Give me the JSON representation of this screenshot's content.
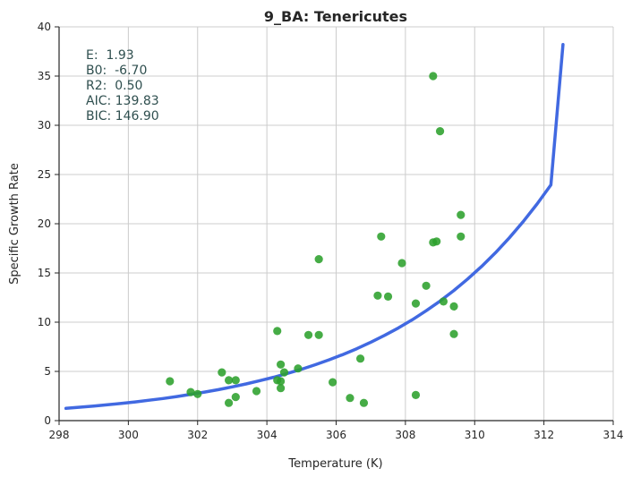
{
  "chart_data": {
    "type": "scatter",
    "title": "9_BA: Tenericutes",
    "xlabel": "Temperature (K)",
    "ylabel": "Specific Growth Rate",
    "xlim": [
      298,
      314
    ],
    "ylim": [
      0,
      40
    ],
    "xticks": [
      298,
      300,
      302,
      304,
      306,
      308,
      310,
      312,
      314
    ],
    "yticks": [
      0,
      5,
      10,
      15,
      20,
      25,
      30,
      35,
      40
    ],
    "grid": true,
    "colors": {
      "points": "#2ca02c",
      "curve": "#4169e1",
      "stats_text": "#2f4f4f",
      "grid": "#cccccc"
    },
    "stats": [
      "E:  1.93",
      "B0:  -6.70",
      "R2:  0.50",
      "AIC: 139.83",
      "BIC: 146.90"
    ],
    "fit_curve": {
      "x": [
        298.2,
        298.6,
        299.0,
        299.4,
        299.8,
        300.2,
        300.6,
        301.0,
        301.4,
        301.8,
        302.2,
        302.6,
        303.0,
        303.4,
        303.8,
        304.2,
        304.6,
        305.0,
        305.4,
        305.8,
        306.2,
        306.6,
        307.0,
        307.4,
        307.8,
        308.2,
        308.6,
        309.0,
        309.4,
        309.8,
        310.2,
        310.6,
        311.0,
        311.4,
        311.8,
        312.2,
        312.55
      ],
      "y": [
        1.25,
        1.36,
        1.48,
        1.61,
        1.75,
        1.9,
        2.07,
        2.25,
        2.45,
        2.67,
        2.9,
        3.15,
        3.43,
        3.73,
        4.06,
        4.41,
        4.8,
        5.22,
        5.68,
        6.18,
        6.72,
        7.31,
        7.96,
        8.66,
        9.42,
        10.25,
        11.16,
        12.15,
        13.22,
        14.39,
        15.66,
        17.05,
        18.56,
        20.21,
        22.0,
        23.95,
        38.2
      ]
    },
    "points": [
      {
        "x": 301.2,
        "y": 4.0
      },
      {
        "x": 301.8,
        "y": 2.9
      },
      {
        "x": 302.0,
        "y": 2.7
      },
      {
        "x": 302.7,
        "y": 4.9
      },
      {
        "x": 302.9,
        "y": 4.1
      },
      {
        "x": 302.9,
        "y": 1.8
      },
      {
        "x": 303.1,
        "y": 4.1
      },
      {
        "x": 303.1,
        "y": 2.4
      },
      {
        "x": 303.7,
        "y": 3.0
      },
      {
        "x": 304.3,
        "y": 9.1
      },
      {
        "x": 304.3,
        "y": 4.1
      },
      {
        "x": 304.4,
        "y": 5.7
      },
      {
        "x": 304.4,
        "y": 4.0
      },
      {
        "x": 304.4,
        "y": 3.3
      },
      {
        "x": 304.5,
        "y": 4.9
      },
      {
        "x": 304.9,
        "y": 5.3
      },
      {
        "x": 305.2,
        "y": 8.7
      },
      {
        "x": 305.5,
        "y": 8.7
      },
      {
        "x": 305.5,
        "y": 16.4
      },
      {
        "x": 305.9,
        "y": 3.9
      },
      {
        "x": 306.4,
        "y": 2.3
      },
      {
        "x": 306.7,
        "y": 6.3
      },
      {
        "x": 306.8,
        "y": 1.8
      },
      {
        "x": 307.2,
        "y": 12.7
      },
      {
        "x": 307.3,
        "y": 18.7
      },
      {
        "x": 307.5,
        "y": 12.6
      },
      {
        "x": 307.9,
        "y": 16.0
      },
      {
        "x": 308.3,
        "y": 11.9
      },
      {
        "x": 308.3,
        "y": 2.6
      },
      {
        "x": 308.6,
        "y": 13.7
      },
      {
        "x": 308.8,
        "y": 18.1
      },
      {
        "x": 308.9,
        "y": 18.2
      },
      {
        "x": 308.8,
        "y": 35.0
      },
      {
        "x": 309.0,
        "y": 29.4
      },
      {
        "x": 309.1,
        "y": 12.1
      },
      {
        "x": 309.4,
        "y": 11.6
      },
      {
        "x": 309.4,
        "y": 8.8
      },
      {
        "x": 309.6,
        "y": 18.7
      },
      {
        "x": 309.6,
        "y": 20.9
      }
    ]
  }
}
